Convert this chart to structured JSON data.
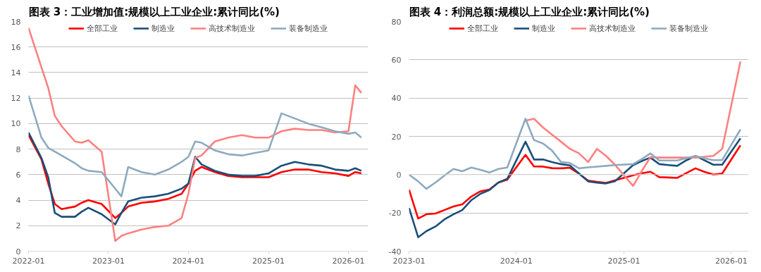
{
  "chart_data": [
    {
      "type": "line",
      "title": "图表 3：工业增加值:规模以上工业企业:累计同比(%)",
      "x": [
        "2022-01",
        "2022-03",
        "2022-04",
        "2022-05",
        "2022-06",
        "2022-08",
        "2022-09",
        "2022-10",
        "2022-12",
        "2023-02",
        "2023-03",
        "2023-04",
        "2023-06",
        "2023-08",
        "2023-10",
        "2023-12",
        "2024-01",
        "2024-02",
        "2024-03",
        "2024-05",
        "2024-07",
        "2024-09",
        "2024-11",
        "2025-01",
        "2025-03",
        "2025-05",
        "2025-07",
        "2025-09",
        "2025-11",
        "2026-01",
        "2026-02",
        "2026-03"
      ],
      "series": [
        {
          "name": "全部工业",
          "color": "#ff0000",
          "values": [
            9.1,
            7.2,
            5.3,
            3.7,
            3.3,
            3.5,
            3.8,
            4.0,
            3.7,
            2.6,
            3.0,
            3.5,
            3.8,
            3.9,
            4.1,
            4.5,
            5.3,
            6.3,
            6.6,
            6.2,
            5.9,
            5.8,
            5.8,
            5.8,
            6.2,
            6.4,
            6.4,
            6.2,
            6.1,
            5.9,
            6.2,
            6.1
          ]
        },
        {
          "name": "制造业",
          "color": "#1a4f7a",
          "values": [
            9.3,
            7.3,
            5.8,
            3.0,
            2.7,
            2.7,
            3.1,
            3.4,
            2.9,
            2.1,
            3.0,
            3.9,
            4.2,
            4.3,
            4.5,
            4.9,
            5.3,
            7.4,
            6.8,
            6.3,
            6.0,
            5.9,
            5.9,
            6.1,
            6.7,
            7.0,
            6.8,
            6.7,
            6.4,
            6.3,
            6.5,
            6.3
          ]
        },
        {
          "name": "高技术制造业",
          "color": "#ff8080",
          "values": [
            17.5,
            14.4,
            12.8,
            10.6,
            9.8,
            8.6,
            8.5,
            8.7,
            7.8,
            0.8,
            1.2,
            1.4,
            1.7,
            1.9,
            2.0,
            2.6,
            4.5,
            7.3,
            7.5,
            8.6,
            8.9,
            9.1,
            8.9,
            8.9,
            9.4,
            9.6,
            9.5,
            9.5,
            9.3,
            9.4,
            13.0,
            12.4
          ]
        },
        {
          "name": "装备制造业",
          "color": "#8eaabf",
          "values": [
            12.2,
            8.9,
            8.1,
            7.8,
            7.5,
            6.9,
            6.5,
            6.3,
            6.2,
            4.9,
            4.3,
            6.6,
            6.2,
            6.0,
            6.4,
            7.0,
            7.4,
            8.6,
            8.5,
            7.9,
            7.6,
            7.5,
            7.7,
            7.9,
            10.8,
            10.4,
            10.0,
            9.7,
            9.4,
            9.2,
            9.3,
            8.9
          ]
        }
      ],
      "xlim": [
        "2022-01",
        "2026-04"
      ],
      "xticks": [
        "2022-01",
        "2023-01",
        "2024-01",
        "2025-01",
        "2026-01"
      ],
      "ylim": [
        0,
        18
      ],
      "yticks": [
        0,
        2,
        4,
        6,
        8,
        10,
        12,
        14,
        16,
        18
      ],
      "grid": "y",
      "legend": "top"
    },
    {
      "type": "line",
      "title": "图表 4：利润总额:规模以上工业企业:累计同比(%)",
      "x": [
        "2023-01",
        "2023-02",
        "2023-03",
        "2023-04",
        "2023-05",
        "2023-06",
        "2023-07",
        "2023-08",
        "2023-09",
        "2023-10",
        "2023-11",
        "2023-12",
        "2024-02",
        "2024-03",
        "2024-04",
        "2024-05",
        "2024-06",
        "2024-07",
        "2024-08",
        "2024-09",
        "2024-10",
        "2024-11",
        "2024-12",
        "2025-02",
        "2025-03",
        "2025-04",
        "2025-05",
        "2025-06",
        "2025-07",
        "2025-08",
        "2025-09",
        "2025-10",
        "2025-11",
        "2025-12",
        "2026-02"
      ],
      "series": [
        {
          "name": "全部工业",
          "color": "#ff0000",
          "values": [
            -7.8,
            -22.9,
            -20.7,
            -20.3,
            -18.5,
            -16.6,
            -15.5,
            -11.4,
            -8.7,
            -7.8,
            -4.1,
            -2.6,
            10.3,
            4.3,
            4.2,
            3.4,
            3.3,
            3.6,
            0.5,
            -3.1,
            -3.8,
            -4.3,
            -3.0,
            -0.3,
            0.7,
            1.5,
            -1.3,
            -1.5,
            -1.7,
            0.8,
            3.3,
            1.5,
            0.0,
            0.6,
            15.3
          ]
        },
        {
          "name": "制造业",
          "color": "#1a4f7a",
          "values": [
            -17.4,
            -32.7,
            -29.5,
            -27.1,
            -23.4,
            -20.7,
            -18.5,
            -13.3,
            -10.0,
            -8.1,
            -4.1,
            -2.2,
            17.2,
            7.9,
            7.9,
            6.6,
            5.5,
            4.8,
            0.6,
            -3.5,
            -4.2,
            -4.6,
            -3.5,
            5.0,
            7.0,
            8.9,
            5.5,
            5.0,
            4.6,
            7.5,
            9.8,
            7.5,
            5.2,
            5.2,
            19.0
          ]
        },
        {
          "name": "高技术制造业",
          "color": "#ff8080",
          "values": [
            null,
            null,
            null,
            null,
            null,
            null,
            null,
            null,
            null,
            null,
            null,
            null,
            28.2,
            29.2,
            24.6,
            20.9,
            17.2,
            13.5,
            11.1,
            6.6,
            13.5,
            9.8,
            5.2,
            -5.9,
            1.5,
            9.2,
            8.9,
            8.9,
            8.9,
            8.9,
            8.9,
            9.3,
            9.8,
            13.5,
            59.1
          ]
        },
        {
          "name": "装备制造业",
          "color": "#8eaabf",
          "values": [
            0.0,
            -3.5,
            -7.4,
            -4.1,
            -0.5,
            3.0,
            1.8,
            3.7,
            2.5,
            1.1,
            3.0,
            3.7,
            29.2,
            18.1,
            16.2,
            12.6,
            6.6,
            6.1,
            3.3,
            3.8,
            4.2,
            4.6,
            5.0,
            5.5,
            8.0,
            11.1,
            7.4,
            7.4,
            7.4,
            8.6,
            9.8,
            8.5,
            7.6,
            7.6,
            23.6
          ]
        }
      ],
      "xlim": [
        "2023-01",
        "2026-03"
      ],
      "xticks": [
        "2023-01",
        "2024-01",
        "2025-01",
        "2026-01"
      ],
      "ylim": [
        -40,
        80
      ],
      "yticks": [
        -40,
        -20,
        0,
        20,
        40,
        60,
        80
      ],
      "grid": "y",
      "legend": "top"
    }
  ]
}
